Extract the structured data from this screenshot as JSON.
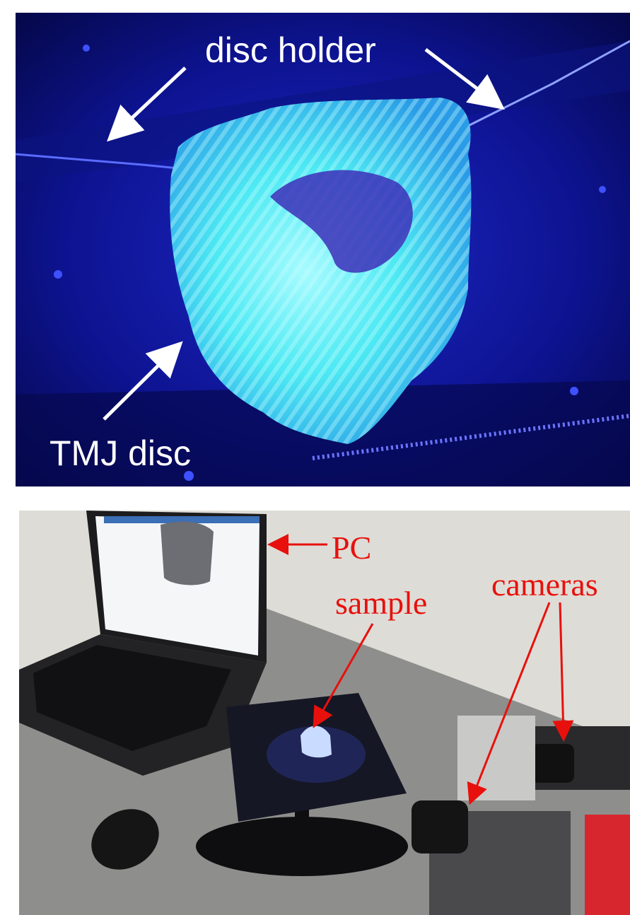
{
  "figure": {
    "top_panel": {
      "labels": {
        "disc_holder": "disc holder",
        "tmj_disc": "TMJ disc"
      },
      "colors": {
        "background": "#0a0f7a",
        "sample_glow": "#39e6f0",
        "label": "#ffffff"
      }
    },
    "bottom_panel": {
      "labels": {
        "pc": "PC",
        "sample": "sample",
        "cameras": "cameras"
      },
      "colors": {
        "label": "#e8100c",
        "wall": "#d9d7d2",
        "desk": "#8e8f8c"
      }
    }
  }
}
